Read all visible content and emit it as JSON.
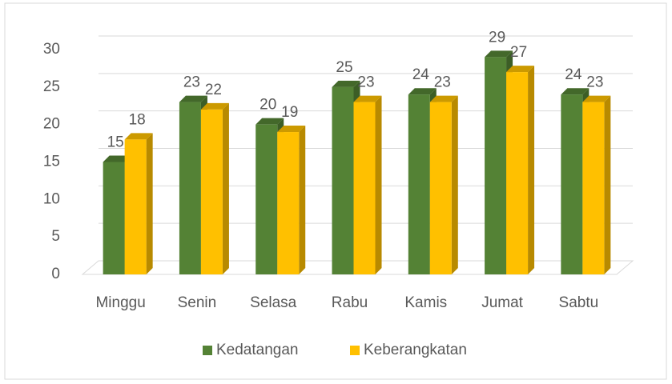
{
  "chart_data": {
    "type": "bar3d",
    "categories": [
      "Minggu",
      "Senin",
      "Selasa",
      "Rabu",
      "Kamis",
      "Jumat",
      "Sabtu"
    ],
    "series": [
      {
        "name": "Kedatangan",
        "color": "#548235",
        "values": [
          15,
          23,
          20,
          25,
          24,
          29,
          24
        ]
      },
      {
        "name": "Keberangkatan",
        "color": "#ffc000",
        "values": [
          18,
          22,
          19,
          23,
          23,
          27,
          23
        ]
      }
    ],
    "ylim": [
      0,
      30
    ],
    "yticks": [
      0,
      5,
      10,
      15,
      20,
      25,
      30
    ],
    "grid": true,
    "legend": "bottom",
    "data_labels": true
  }
}
